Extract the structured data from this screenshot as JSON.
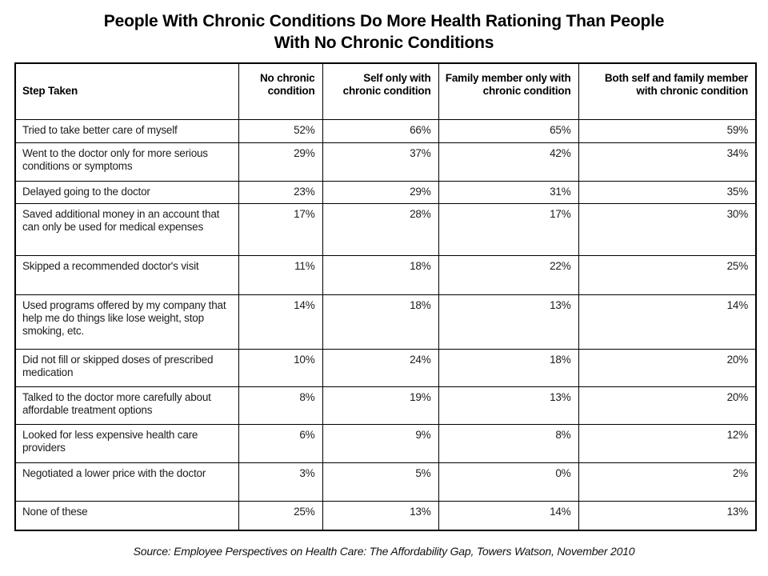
{
  "title": {
    "line1": "People With Chronic Conditions Do More Health Rationing Than People",
    "line2": "With No Chronic Conditions"
  },
  "source": "Source: Employee Perspectives on Health Care: The Affordability Gap, Towers Watson, November 2010",
  "chart_data": {
    "type": "table",
    "title": "People With Chronic Conditions Do More Health Rationing Than People With No Chronic Conditions",
    "columns": [
      "Step Taken",
      "No chronic condition",
      "Self only with chronic condition",
      "Family member only with chronic condition",
      "Both self and family member with chronic condition"
    ],
    "unit": "percent",
    "rows": [
      {
        "step": "Tried to take better care of myself",
        "values": [
          "52%",
          "66%",
          "65%",
          "59%"
        ]
      },
      {
        "step": "Went to the doctor only for more serious conditions or symptoms",
        "values": [
          "29%",
          "37%",
          "42%",
          "34%"
        ]
      },
      {
        "step": "Delayed going to the doctor",
        "values": [
          "23%",
          "29%",
          "31%",
          "35%"
        ]
      },
      {
        "step": "Saved additional money in an account that can only be used for medical expenses",
        "values": [
          "17%",
          "28%",
          "17%",
          "30%"
        ]
      },
      {
        "step": "Skipped a recommended doctor's visit",
        "values": [
          "11%",
          "18%",
          "22%",
          "25%"
        ]
      },
      {
        "step": "Used programs offered by my company that help me do things like lose weight, stop smoking, etc.",
        "values": [
          "14%",
          "18%",
          "13%",
          "14%"
        ]
      },
      {
        "step": "Did not fill or skipped doses of prescribed medication",
        "values": [
          "10%",
          "24%",
          "18%",
          "20%"
        ]
      },
      {
        "step": "Talked to the doctor more carefully about affordable treatment options",
        "values": [
          "8%",
          "19%",
          "13%",
          "20%"
        ]
      },
      {
        "step": "Looked for less expensive health care providers",
        "values": [
          "6%",
          "9%",
          "8%",
          "12%"
        ]
      },
      {
        "step": "Negotiated a lower price with the doctor",
        "values": [
          "3%",
          "5%",
          "0%",
          "2%"
        ]
      },
      {
        "step": "None of these",
        "values": [
          "25%",
          "13%",
          "14%",
          "13%"
        ]
      }
    ]
  }
}
